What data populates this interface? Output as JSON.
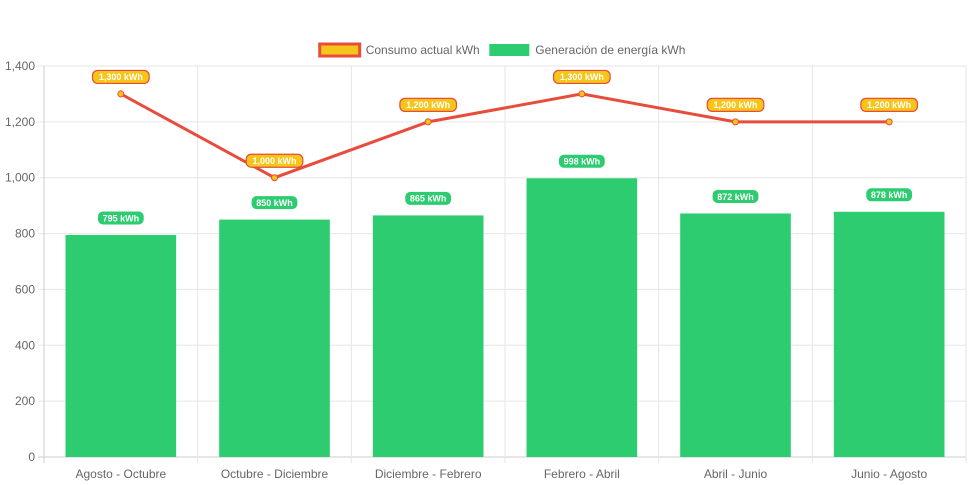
{
  "chart_data": {
    "type": "bar",
    "categories": [
      "Agosto - Octubre",
      "Octubre - Diciembre",
      "Diciembre - Febrero",
      "Febrero - Abril",
      "Abril - Junio",
      "Junio - Agosto"
    ],
    "series": [
      {
        "name": "Consumo actual kWh",
        "type": "line",
        "values": [
          1300,
          1000,
          1200,
          1300,
          1200,
          1200
        ],
        "labels": [
          "1,300 kWh",
          "1,000 kWh",
          "1,200 kWh",
          "1,300 kWh",
          "1,200 kWh",
          "1,200 kWh"
        ],
        "color": "#E74C3C",
        "fill": "#F5C518"
      },
      {
        "name": "Generación de energía kWh",
        "type": "bar",
        "values": [
          795,
          850,
          865,
          998,
          872,
          878
        ],
        "labels": [
          "795 kWh",
          "850 kWh",
          "865 kWh",
          "998 kWh",
          "872 kWh",
          "878 kWh"
        ],
        "color": "#2ECC71"
      }
    ],
    "ylim": [
      0,
      1400
    ],
    "yticks": [
      "0",
      "200",
      "400",
      "600",
      "800",
      "1,000",
      "1,200",
      "1,400"
    ],
    "grid": true,
    "legend": "top-center",
    "xlabel": "",
    "ylabel": "",
    "title": ""
  }
}
